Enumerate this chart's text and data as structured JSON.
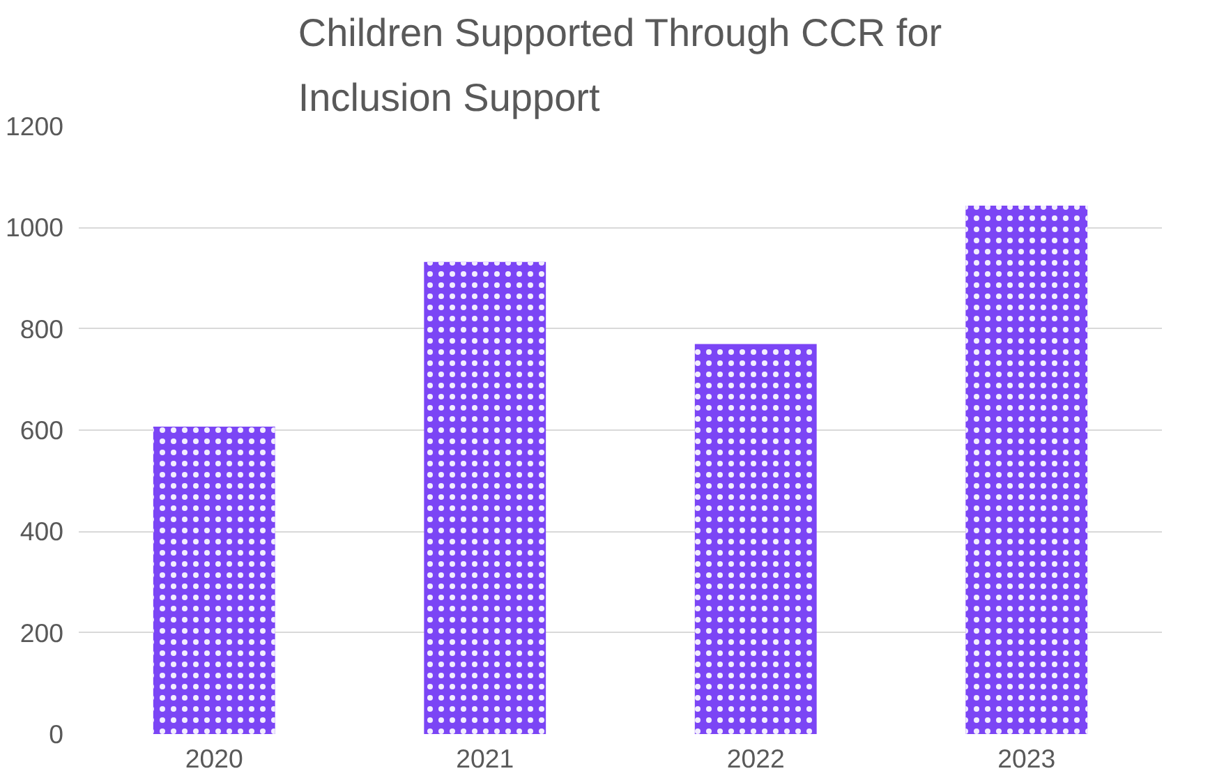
{
  "chart_data": {
    "type": "bar",
    "title": "Children Supported Through CCR for\nInclusion Support",
    "categories": [
      "2020",
      "2021",
      "2022",
      "2023"
    ],
    "values": [
      607,
      932,
      770,
      1043
    ],
    "color": "#7b45f5",
    "ylim": [
      0,
      1200
    ],
    "yticks": [
      0,
      200,
      400,
      600,
      800,
      1000,
      1200
    ],
    "grid": "y"
  }
}
